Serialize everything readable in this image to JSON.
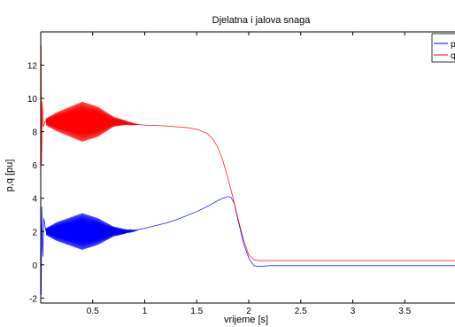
{
  "chart_data": {
    "type": "line",
    "title": "Djelatna i jalova snaga",
    "xlabel": "vrijeme [s]",
    "ylabel": "p,q [pu]",
    "xlim": [
      0,
      4.0
    ],
    "ylim": [
      -2.3,
      14.0
    ],
    "xticks": [
      0.5,
      1,
      1.5,
      2,
      2.5,
      3,
      3.5
    ],
    "xtick_labels": [
      "0.5",
      "1",
      "1.5",
      "2",
      "2.5",
      "3",
      "3.5"
    ],
    "yticks": [
      -2,
      0,
      2,
      4,
      6,
      8,
      10,
      12
    ],
    "ytick_labels": [
      "-2",
      "0",
      "2",
      "4",
      "6",
      "8",
      "10",
      "12"
    ],
    "grid": false,
    "legend_position": "top-right",
    "series": [
      {
        "name": "p",
        "color": "#0000ff",
        "x": [
          0.0,
          0.005,
          0.01,
          0.02,
          0.03,
          0.05,
          0.1,
          0.15,
          0.2,
          0.25,
          0.3,
          0.35,
          0.4,
          0.45,
          0.5,
          0.55,
          0.6,
          0.65,
          0.7,
          0.8,
          0.9,
          1.0,
          1.1,
          1.2,
          1.3,
          1.4,
          1.5,
          1.6,
          1.7,
          1.75,
          1.8,
          1.83,
          1.86,
          1.9,
          1.95,
          2.0,
          2.05,
          2.1,
          2.2,
          2.5,
          3.0,
          3.5,
          4.0
        ],
        "values": [
          0.0,
          -1.8,
          3.5,
          0.5,
          2.8,
          2.0,
          2.0,
          2.0,
          2.0,
          2.0,
          2.0,
          2.0,
          2.0,
          2.0,
          2.0,
          2.0,
          2.0,
          2.0,
          2.0,
          2.0,
          2.05,
          2.2,
          2.35,
          2.5,
          2.7,
          2.95,
          3.2,
          3.5,
          3.85,
          4.0,
          4.1,
          4.05,
          3.7,
          2.6,
          1.3,
          0.4,
          -0.05,
          -0.1,
          -0.05,
          -0.05,
          -0.05,
          -0.05,
          -0.05
        ],
        "oscillation": {
          "from": 0.05,
          "to": 0.95,
          "period": 0.0085,
          "amplitude_envelope": [
            [
              0.05,
              0.2
            ],
            [
              0.15,
              0.55
            ],
            [
              0.4,
              1.1
            ],
            [
              0.55,
              0.8
            ],
            [
              0.7,
              0.3
            ],
            [
              0.85,
              0.08
            ],
            [
              0.95,
              0.0
            ]
          ]
        }
      },
      {
        "name": "q",
        "color": "#ff0000",
        "x": [
          0.0,
          0.004,
          0.008,
          0.015,
          0.025,
          0.04,
          0.1,
          0.2,
          0.3,
          0.4,
          0.5,
          0.6,
          0.7,
          0.8,
          0.9,
          1.0,
          1.2,
          1.4,
          1.5,
          1.6,
          1.65,
          1.7,
          1.75,
          1.8,
          1.85,
          1.9,
          1.95,
          2.0,
          2.05,
          2.1,
          2.2,
          2.5,
          3.0,
          3.5,
          4.0
        ],
        "values": [
          0.0,
          13.2,
          6.0,
          9.8,
          8.3,
          8.6,
          8.6,
          8.6,
          8.6,
          8.6,
          8.6,
          8.6,
          8.6,
          8.55,
          8.45,
          8.4,
          8.35,
          8.25,
          8.15,
          7.9,
          7.6,
          7.1,
          6.3,
          5.2,
          4.0,
          2.7,
          1.5,
          0.6,
          0.3,
          0.25,
          0.25,
          0.25,
          0.25,
          0.25,
          0.25
        ],
        "oscillation": {
          "from": 0.05,
          "to": 0.95,
          "period": 0.0085,
          "amplitude_envelope": [
            [
              0.05,
              0.2
            ],
            [
              0.15,
              0.55
            ],
            [
              0.4,
              1.2
            ],
            [
              0.55,
              0.9
            ],
            [
              0.7,
              0.3
            ],
            [
              0.85,
              0.08
            ],
            [
              0.95,
              0.0
            ]
          ]
        }
      }
    ]
  }
}
